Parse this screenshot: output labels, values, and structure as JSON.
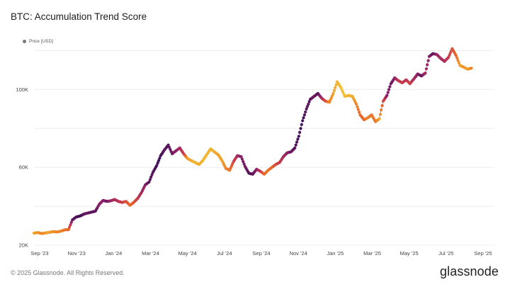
{
  "header": {
    "title": "BTC: Accumulation Trend Score"
  },
  "legend": {
    "label": "Price [USD]",
    "color": "#777777"
  },
  "footer": {
    "copyright": "© 2025 Glassnode. All Rights Reserved.",
    "brand": "glassnode"
  },
  "chart_data": {
    "type": "scatter",
    "title": "BTC: Accumulation Trend Score",
    "xlabel": "",
    "ylabel": "",
    "grid": true,
    "legend_position": "top-left",
    "y_ticks": [
      {
        "label": "20K",
        "value": 20000
      },
      {
        "label": "60K",
        "value": 60000
      },
      {
        "label": "100K",
        "value": 100000
      }
    ],
    "x_ticks": [
      "Sep '23",
      "Nov '23",
      "Jan '24",
      "Mar '24",
      "May '24",
      "Jul '24",
      "Sep '24",
      "Nov '24",
      "Jan '25",
      "Mar '25",
      "May '25",
      "Jul '25",
      "Sep '25"
    ],
    "x_range": [
      0,
      24
    ],
    "ylim": [
      20000,
      122000
    ],
    "color_scale": {
      "1": "#f5c63a",
      "0.8": "#f0a22c",
      "0.6": "#e8682a",
      "0.4": "#c63a4c",
      "0.2": "#8a1f6a",
      "0": "#2a0b4f"
    },
    "series": [
      {
        "name": "Price [USD]",
        "points": [
          [
            0.0,
            26200,
            0.8
          ],
          [
            0.2,
            26500,
            0.75
          ],
          [
            0.4,
            26000,
            0.7
          ],
          [
            0.6,
            26300,
            0.75
          ],
          [
            0.8,
            26600,
            0.8
          ],
          [
            1.0,
            27000,
            0.75
          ],
          [
            1.2,
            26800,
            0.7
          ],
          [
            1.4,
            27200,
            0.7
          ],
          [
            1.6,
            27900,
            0.65
          ],
          [
            1.8,
            28000,
            0.6
          ],
          [
            2.0,
            33000,
            0.1
          ],
          [
            2.2,
            34500,
            0.1
          ],
          [
            2.4,
            35000,
            0.05
          ],
          [
            2.6,
            36000,
            0.1
          ],
          [
            2.8,
            36500,
            0.15
          ],
          [
            3.0,
            37000,
            0.1
          ],
          [
            3.2,
            37500,
            0.1
          ],
          [
            3.4,
            41000,
            0.2
          ],
          [
            3.6,
            43000,
            0.2
          ],
          [
            3.8,
            42500,
            0.15
          ],
          [
            4.0,
            42800,
            0.25
          ],
          [
            4.2,
            43500,
            0.3
          ],
          [
            4.4,
            42500,
            0.35
          ],
          [
            4.6,
            42000,
            0.4
          ],
          [
            4.8,
            42500,
            0.5
          ],
          [
            5.0,
            40500,
            0.6
          ],
          [
            5.2,
            42000,
            0.55
          ],
          [
            5.4,
            44000,
            0.4
          ],
          [
            5.6,
            47000,
            0.3
          ],
          [
            5.8,
            51000,
            0.2
          ],
          [
            6.0,
            52500,
            0.1
          ],
          [
            6.2,
            57500,
            0.1
          ],
          [
            6.4,
            61000,
            0.05
          ],
          [
            6.6,
            66000,
            0.05
          ],
          [
            6.8,
            69000,
            0.1
          ],
          [
            7.0,
            71500,
            0.1
          ],
          [
            7.2,
            67000,
            0.15
          ],
          [
            7.4,
            68500,
            0.2
          ],
          [
            7.6,
            70000,
            0.3
          ],
          [
            7.8,
            67000,
            0.4
          ],
          [
            8.0,
            64500,
            0.8
          ],
          [
            8.2,
            63500,
            0.85
          ],
          [
            8.4,
            62500,
            0.9
          ],
          [
            8.6,
            61500,
            0.85
          ],
          [
            8.8,
            63500,
            0.9
          ],
          [
            9.0,
            66500,
            0.9
          ],
          [
            9.2,
            69500,
            0.9
          ],
          [
            9.4,
            68000,
            0.85
          ],
          [
            9.6,
            66500,
            0.8
          ],
          [
            9.8,
            63500,
            0.8
          ],
          [
            10.0,
            59500,
            0.7
          ],
          [
            10.2,
            58500,
            0.65
          ],
          [
            10.4,
            63000,
            0.45
          ],
          [
            10.6,
            66000,
            0.3
          ],
          [
            10.8,
            65500,
            0.2
          ],
          [
            11.0,
            60500,
            0.15
          ],
          [
            11.2,
            57000,
            0.1
          ],
          [
            11.4,
            56500,
            0.1
          ],
          [
            11.6,
            59000,
            0.2
          ],
          [
            11.8,
            58000,
            0.4
          ],
          [
            12.0,
            56500,
            0.6
          ],
          [
            12.2,
            58500,
            0.65
          ],
          [
            12.4,
            60000,
            0.6
          ],
          [
            12.6,
            61500,
            0.5
          ],
          [
            12.8,
            62500,
            0.4
          ],
          [
            13.0,
            65500,
            0.3
          ],
          [
            13.2,
            67500,
            0.2
          ],
          [
            13.4,
            68000,
            0.15
          ],
          [
            13.6,
            70000,
            0.1
          ],
          [
            13.8,
            76000,
            0.05
          ],
          [
            14.0,
            84000,
            0.05
          ],
          [
            14.2,
            90000,
            0.1
          ],
          [
            14.4,
            95000,
            0.1
          ],
          [
            14.6,
            96500,
            0.15
          ],
          [
            14.8,
            98000,
            0.1
          ],
          [
            15.0,
            95500,
            0.3
          ],
          [
            15.2,
            94000,
            0.5
          ],
          [
            15.4,
            93500,
            0.7
          ],
          [
            15.6,
            98000,
            0.8
          ],
          [
            15.8,
            104000,
            0.9
          ],
          [
            16.0,
            101000,
            0.95
          ],
          [
            16.2,
            96500,
            0.95
          ],
          [
            16.4,
            97000,
            0.9
          ],
          [
            16.6,
            96500,
            0.85
          ],
          [
            16.8,
            92500,
            0.7
          ],
          [
            17.0,
            87000,
            0.6
          ],
          [
            17.2,
            84500,
            0.6
          ],
          [
            17.4,
            85500,
            0.7
          ],
          [
            17.6,
            87000,
            0.65
          ],
          [
            17.8,
            83500,
            0.65
          ],
          [
            18.0,
            85000,
            0.8
          ],
          [
            18.2,
            94000,
            0.5
          ],
          [
            18.4,
            97000,
            0.2
          ],
          [
            18.6,
            103000,
            0.15
          ],
          [
            18.8,
            106000,
            0.2
          ],
          [
            19.0,
            104500,
            0.4
          ],
          [
            19.2,
            103500,
            0.4
          ],
          [
            19.4,
            105000,
            0.35
          ],
          [
            19.6,
            103000,
            0.45
          ],
          [
            19.8,
            105500,
            0.3
          ],
          [
            20.0,
            108000,
            0.2
          ],
          [
            20.2,
            107000,
            0.1
          ],
          [
            20.4,
            108500,
            0.3
          ],
          [
            20.6,
            117000,
            0.2
          ],
          [
            20.8,
            118500,
            0.1
          ],
          [
            21.0,
            118000,
            0.25
          ],
          [
            21.2,
            116000,
            0.3
          ],
          [
            21.4,
            114500,
            0.3
          ],
          [
            21.6,
            116500,
            0.4
          ],
          [
            21.8,
            121000,
            0.5
          ],
          [
            22.0,
            117500,
            0.6
          ],
          [
            22.2,
            112500,
            0.8
          ],
          [
            22.4,
            111500,
            0.75
          ],
          [
            22.6,
            110500,
            0.8
          ],
          [
            22.8,
            111000,
            0.7
          ]
        ]
      }
    ]
  }
}
